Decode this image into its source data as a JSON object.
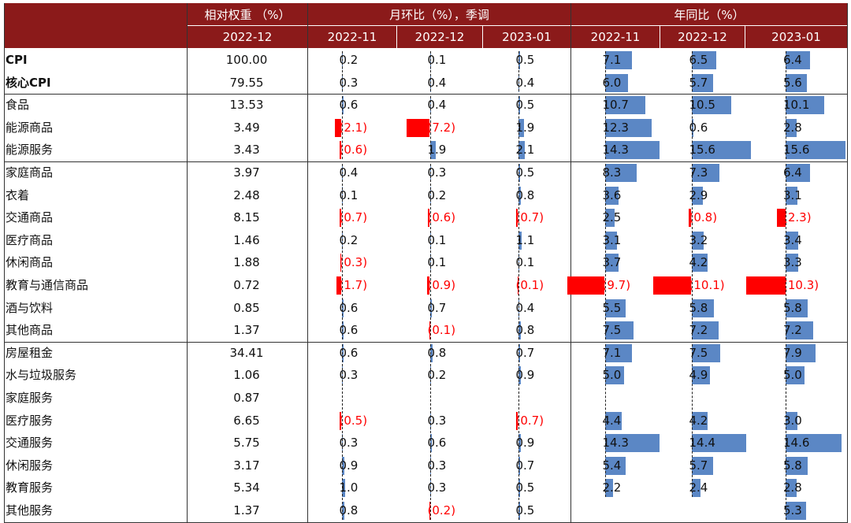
{
  "colors": {
    "header_bg": "#8b1a1a",
    "positive_bar": "#5b87c5",
    "negative_bar": "#ff0000",
    "negative_text": "#ff0000"
  },
  "header": {
    "weight_title": "相对权重 （%）",
    "mom_title": "月环比（%），季调",
    "yoy_title": "年同比（%）",
    "weight_period": "2022-12",
    "mom_periods": [
      "2022-11",
      "2022-12",
      "2023-01"
    ],
    "yoy_periods": [
      "2022-11",
      "2022-12",
      "2023-01"
    ]
  },
  "chart_data": {
    "type": "table",
    "columns": [
      "相对权重 2022-12",
      "月环比 2022-11",
      "月环比 2022-12",
      "月环比 2023-01",
      "年同比 2022-11",
      "年同比 2022-12",
      "年同比 2023-01"
    ],
    "rows": [
      {
        "name": "CPI",
        "bold": true,
        "weight": "100.00",
        "mom": [
          0.2,
          0.1,
          0.5
        ],
        "yoy": [
          7.1,
          6.5,
          6.4
        ]
      },
      {
        "name": "核心CPI",
        "bold": true,
        "weight": "79.55",
        "mom": [
          0.3,
          0.4,
          0.4
        ],
        "yoy": [
          6.0,
          5.7,
          5.6
        ]
      },
      {
        "name": "食品",
        "weight": "13.53",
        "mom": [
          0.6,
          0.4,
          0.5
        ],
        "yoy": [
          10.7,
          10.5,
          10.1
        ]
      },
      {
        "name": "能源商品",
        "weight": "3.49",
        "mom": [
          -2.1,
          -7.2,
          1.9
        ],
        "yoy": [
          12.3,
          0.6,
          2.8
        ]
      },
      {
        "name": "能源服务",
        "weight": "3.43",
        "mom": [
          -0.6,
          1.9,
          2.1
        ],
        "yoy": [
          14.3,
          15.6,
          15.6
        ]
      },
      {
        "name": "家庭商品",
        "weight": "3.97",
        "mom": [
          0.4,
          0.3,
          0.5
        ],
        "yoy": [
          8.3,
          7.3,
          6.4
        ]
      },
      {
        "name": "衣着",
        "weight": "2.48",
        "mom": [
          0.1,
          0.2,
          0.8
        ],
        "yoy": [
          3.6,
          2.9,
          3.1
        ]
      },
      {
        "name": "交通商品",
        "weight": "8.15",
        "mom": [
          -0.7,
          -0.6,
          -0.7
        ],
        "yoy": [
          2.5,
          -0.8,
          -2.3
        ]
      },
      {
        "name": "医疗商品",
        "weight": "1.46",
        "mom": [
          0.2,
          0.1,
          1.1
        ],
        "yoy": [
          3.1,
          3.2,
          3.4
        ]
      },
      {
        "name": "休闲商品",
        "weight": "1.88",
        "mom": [
          -0.3,
          0.1,
          0.1
        ],
        "yoy": [
          3.7,
          4.2,
          3.3
        ]
      },
      {
        "name": "教育与通信商品",
        "weight": "0.72",
        "mom": [
          -1.7,
          -0.9,
          -0.1
        ],
        "yoy": [
          -9.7,
          -10.1,
          -10.3
        ]
      },
      {
        "name": "酒与饮料",
        "weight": "0.85",
        "mom": [
          0.6,
          0.7,
          0.4
        ],
        "yoy": [
          5.5,
          5.8,
          5.8
        ]
      },
      {
        "name": "其他商品",
        "weight": "1.37",
        "mom": [
          0.6,
          -0.1,
          0.8
        ],
        "yoy": [
          7.5,
          7.2,
          7.2
        ]
      },
      {
        "name": "房屋租金",
        "weight": "34.41",
        "mom": [
          0.6,
          0.8,
          0.7
        ],
        "yoy": [
          7.1,
          7.5,
          7.9
        ]
      },
      {
        "name": "水与垃圾服务",
        "weight": "1.06",
        "mom": [
          0.3,
          0.2,
          0.9
        ],
        "yoy": [
          5.0,
          4.9,
          5.0
        ]
      },
      {
        "name": "家庭服务",
        "weight": "0.87",
        "mom": [
          null,
          null,
          null
        ],
        "yoy": [
          null,
          null,
          null
        ]
      },
      {
        "name": "医疗服务",
        "weight": "6.65",
        "mom": [
          -0.5,
          0.3,
          -0.7
        ],
        "yoy": [
          4.4,
          4.2,
          3.0
        ]
      },
      {
        "name": "交通服务",
        "weight": "5.75",
        "mom": [
          0.3,
          0.6,
          0.9
        ],
        "yoy": [
          14.3,
          14.4,
          14.6
        ]
      },
      {
        "name": "休闲服务",
        "weight": "3.17",
        "mom": [
          0.9,
          0.3,
          0.7
        ],
        "yoy": [
          5.4,
          5.7,
          5.8
        ]
      },
      {
        "name": "教育服务",
        "weight": "5.34",
        "mom": [
          1.0,
          0.3,
          0.5
        ],
        "yoy": [
          2.2,
          2.4,
          2.8
        ]
      },
      {
        "name": "其他服务",
        "weight": "1.37",
        "mom": [
          0.8,
          -0.2,
          0.5
        ],
        "yoy": [
          null,
          null,
          5.3
        ]
      }
    ]
  }
}
